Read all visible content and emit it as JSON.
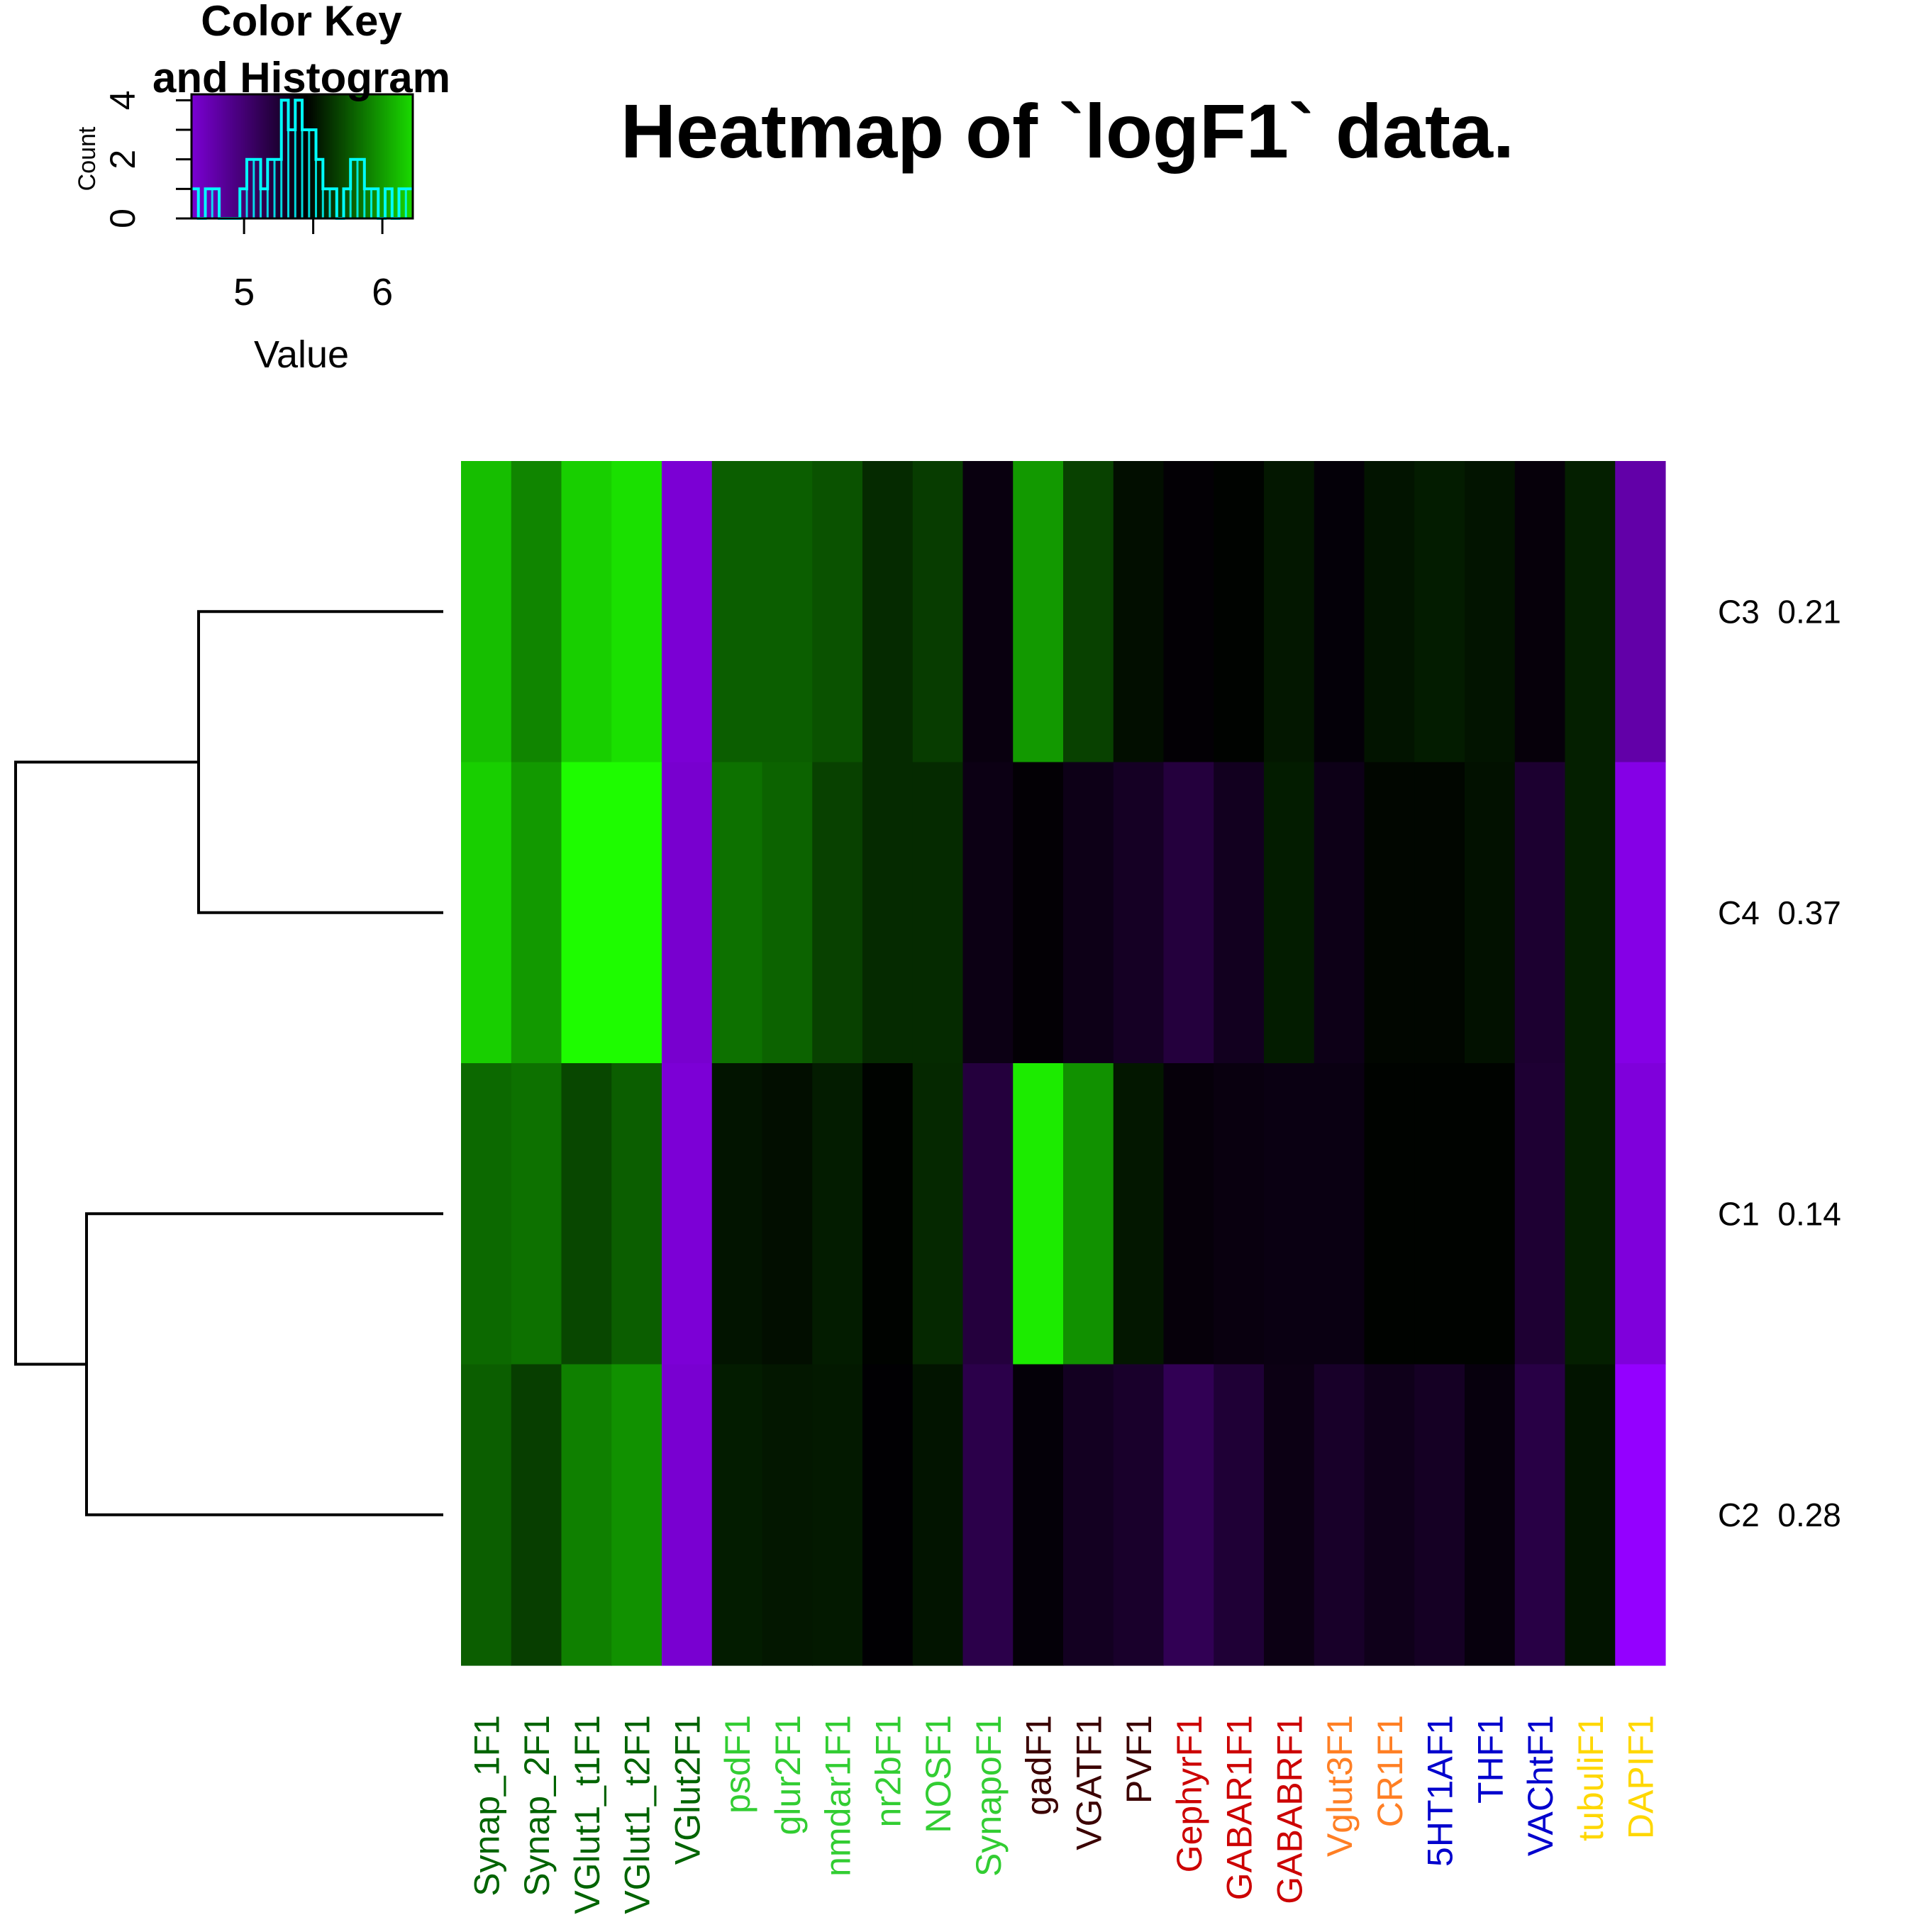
{
  "chart_data": [
    {
      "type": "heatmap",
      "title": "Heatmap of `logF1` data.",
      "columns": [
        {
          "label": "Synap_1F1",
          "color": "#006400"
        },
        {
          "label": "Synap_2F1",
          "color": "#006400"
        },
        {
          "label": "VGlut1_t1F1",
          "color": "#006400"
        },
        {
          "label": "VGlut1_t2F1",
          "color": "#006400"
        },
        {
          "label": "VGlut2F1",
          "color": "#006400"
        },
        {
          "label": "psdF1",
          "color": "#32CD32"
        },
        {
          "label": "glur2F1",
          "color": "#32CD32"
        },
        {
          "label": "nmdar1F1",
          "color": "#32CD32"
        },
        {
          "label": "nr2bF1",
          "color": "#32CD32"
        },
        {
          "label": "NOSF1",
          "color": "#32CD32"
        },
        {
          "label": "SynapoF1",
          "color": "#32CD32"
        },
        {
          "label": "gadF1",
          "color": "#3B0000"
        },
        {
          "label": "VGATF1",
          "color": "#3B0000"
        },
        {
          "label": "PVF1",
          "color": "#3B0000"
        },
        {
          "label": "GephyrF1",
          "color": "#CC0000"
        },
        {
          "label": "GABAR1F1",
          "color": "#CC0000"
        },
        {
          "label": "GABABRF1",
          "color": "#CC0000"
        },
        {
          "label": "Vglut3F1",
          "color": "#FF7F24"
        },
        {
          "label": "CR1F1",
          "color": "#FF7F24"
        },
        {
          "label": "5HT1AF1",
          "color": "#0000CD"
        },
        {
          "label": "THF1",
          "color": "#0000CD"
        },
        {
          "label": "VAChtF1",
          "color": "#0000CD"
        },
        {
          "label": "tubuliF1",
          "color": "#FFD700"
        },
        {
          "label": "DAPIF1",
          "color": "#FFD700"
        }
      ],
      "rows": [
        {
          "label": "C3  0.21",
          "values": [
            6.12,
            5.92,
            6.18,
            6.24,
            4.62,
            5.78,
            5.78,
            5.74,
            5.6,
            5.66,
            5.39,
            5.99,
            5.68,
            5.5,
            5.43,
            5.46,
            5.53,
            5.42,
            5.52,
            5.55,
            5.52,
            5.41,
            5.56,
            4.79
          ]
        },
        {
          "label": "C4  0.37",
          "values": [
            6.18,
            5.99,
            6.34,
            6.34,
            4.64,
            5.85,
            5.8,
            5.68,
            5.6,
            5.6,
            5.37,
            5.43,
            5.36,
            5.31,
            5.21,
            5.33,
            5.55,
            5.36,
            5.47,
            5.47,
            5.51,
            5.26,
            5.56,
            4.55
          ]
        },
        {
          "label": "C1  0.14",
          "values": [
            5.82,
            5.85,
            5.7,
            5.78,
            4.61,
            5.52,
            5.5,
            5.55,
            5.46,
            5.59,
            5.21,
            6.28,
            5.96,
            5.53,
            5.41,
            5.39,
            5.38,
            5.38,
            5.46,
            5.46,
            5.46,
            5.25,
            5.56,
            4.59
          ]
        },
        {
          "label": "C2  0.28",
          "values": [
            5.78,
            5.67,
            5.9,
            5.96,
            4.63,
            5.55,
            5.53,
            5.54,
            5.44,
            5.52,
            5.16,
            5.42,
            5.32,
            5.28,
            5.12,
            5.24,
            5.37,
            5.29,
            5.35,
            5.31,
            5.4,
            5.18,
            5.52,
            4.42
          ]
        }
      ],
      "row_order_note": "",
      "color_scale": {
        "low": "#9400ff",
        "mid": "#000000",
        "high": "#1eff00",
        "min": 4.45,
        "max": 6.35,
        "midpoint": 5.45
      },
      "dendrogram": {
        "top_merge": "C3,C4",
        "bottom_merge": "C1,C2"
      }
    },
    {
      "type": "histogram",
      "title": "Color Key\nand Histogram",
      "title_lines": [
        "Color Key",
        "and Histogram"
      ],
      "xlabel": "Value",
      "ylabel": "Count",
      "x_ticks": [
        "5",
        "6"
      ],
      "y_ticks": [
        "0",
        "2",
        "4"
      ],
      "xlim": [
        4.62,
        6.22
      ],
      "ylim": [
        0,
        4.2
      ],
      "bins": [
        [
          4.62,
          4.67,
          1
        ],
        [
          4.67,
          4.72,
          0
        ],
        [
          4.72,
          4.77,
          1
        ],
        [
          4.77,
          4.82,
          1
        ],
        [
          4.82,
          4.87,
          0
        ],
        [
          4.87,
          4.92,
          0
        ],
        [
          4.92,
          4.97,
          0
        ],
        [
          4.97,
          5.02,
          1
        ],
        [
          5.02,
          5.07,
          2
        ],
        [
          5.07,
          5.12,
          2
        ],
        [
          5.12,
          5.17,
          1
        ],
        [
          5.17,
          5.22,
          2
        ],
        [
          5.22,
          5.27,
          2
        ],
        [
          5.27,
          5.32,
          4
        ],
        [
          5.32,
          5.37,
          3
        ],
        [
          5.37,
          5.42,
          4
        ],
        [
          5.42,
          5.47,
          3
        ],
        [
          5.47,
          5.52,
          3
        ],
        [
          5.52,
          5.57,
          2
        ],
        [
          5.57,
          5.62,
          1
        ],
        [
          5.62,
          5.67,
          1
        ],
        [
          5.67,
          5.72,
          0
        ],
        [
          5.72,
          5.77,
          1
        ],
        [
          5.77,
          5.82,
          2
        ],
        [
          5.82,
          5.87,
          2
        ],
        [
          5.87,
          5.92,
          1
        ],
        [
          5.92,
          5.97,
          1
        ],
        [
          5.97,
          6.02,
          0
        ],
        [
          6.02,
          6.07,
          1
        ],
        [
          6.07,
          6.12,
          0
        ],
        [
          6.12,
          6.17,
          1
        ],
        [
          6.17,
          6.22,
          1
        ]
      ],
      "line_color": "#00FFFF"
    }
  ]
}
